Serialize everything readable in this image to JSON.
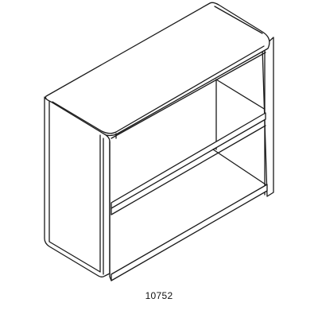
{
  "figure": {
    "subject": "bookcase-line-drawing",
    "caption": "10752"
  }
}
